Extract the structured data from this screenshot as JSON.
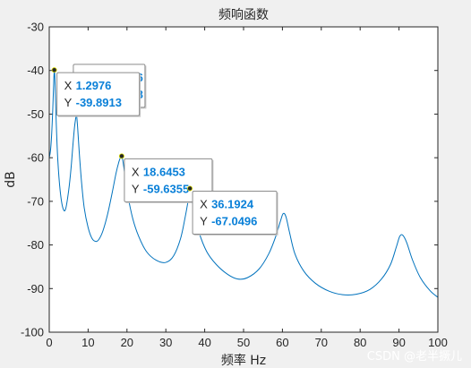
{
  "chart_data": {
    "type": "line",
    "title": "频响函数",
    "xlabel": "频率 Hz",
    "ylabel": "dB",
    "xlim": [
      0,
      100
    ],
    "ylim": [
      -100,
      -30
    ],
    "xticks": [
      0,
      10,
      20,
      30,
      40,
      50,
      60,
      70,
      80,
      90,
      100
    ],
    "yticks": [
      -30,
      -40,
      -50,
      -60,
      -70,
      -80,
      -90,
      -100
    ],
    "grid": false,
    "series": [
      {
        "line_color": "#0072bd",
        "x": [
          0,
          0.3,
          0.6,
          0.9,
          1.1,
          1.3,
          1.5,
          1.8,
          2.2,
          2.8,
          3.5,
          4.2,
          5.0,
          5.6,
          6.1,
          6.5,
          6.8,
          7.0,
          7.3,
          7.7,
          8.3,
          9.0,
          10.0,
          11.0,
          12.0,
          12.8,
          13.8,
          15.0,
          16.2,
          17.2,
          17.9,
          18.3,
          18.6,
          18.9,
          19.4,
          20.2,
          21.5,
          23.0,
          25.0,
          27.5,
          30.0,
          32.0,
          33.8,
          35.0,
          35.8,
          36.2,
          36.6,
          37.3,
          38.5,
          40.5,
          43.0,
          46.0,
          48.5,
          51.0,
          54.0,
          56.5,
          58.3,
          59.5,
          60.2,
          60.9,
          61.8,
          63.2,
          65.5,
          68.5,
          72.0,
          75.5,
          79.0,
          82.5,
          85.5,
          87.8,
          89.3,
          90.2,
          91.0,
          92.0,
          93.5,
          95.5,
          98.0,
          100.0
        ],
        "y": [
          -60.0,
          -58.5,
          -55.0,
          -49.0,
          -44.0,
          -39.9,
          -43.0,
          -52.0,
          -60.5,
          -67.5,
          -71.5,
          -71.8,
          -67.5,
          -62.5,
          -57.0,
          -53.0,
          -51.0,
          -50.0,
          -53.0,
          -58.5,
          -65.5,
          -71.5,
          -76.0,
          -78.5,
          -79.2,
          -78.7,
          -76.8,
          -73.0,
          -68.0,
          -63.5,
          -61.0,
          -60.0,
          -59.6,
          -60.5,
          -63.5,
          -68.5,
          -74.0,
          -78.0,
          -81.5,
          -83.5,
          -84.0,
          -82.5,
          -78.5,
          -73.5,
          -69.5,
          -67.0,
          -68.5,
          -72.5,
          -77.0,
          -81.5,
          -84.5,
          -86.8,
          -87.8,
          -87.5,
          -85.5,
          -82.0,
          -78.0,
          -74.5,
          -72.8,
          -73.5,
          -77.0,
          -82.0,
          -86.0,
          -88.8,
          -90.6,
          -91.4,
          -91.3,
          -90.2,
          -87.8,
          -84.5,
          -80.5,
          -78.0,
          -77.8,
          -79.5,
          -83.5,
          -87.5,
          -90.5,
          -92.0
        ]
      }
    ],
    "datatips": [
      {
        "key_x": "X",
        "key_y": "Y",
        "x_text": "1.2976",
        "y_text": "-39.8913",
        "x": 1.2976,
        "y": -39.8913
      },
      {
        "key_x": "X",
        "key_y": "Y",
        "x_text": "18.6453",
        "y_text": "-59.6355",
        "x": 18.6453,
        "y": -59.6355
      },
      {
        "key_x": "X",
        "key_y": "Y",
        "x_text": "36.1924",
        "y_text": "-67.0496",
        "x": 36.1924,
        "y": -67.0496
      }
    ],
    "hidden_datatip": {
      "x_text_partial": "76",
      "y_text_partial": "48",
      "x": 6.9,
      "y": -50.0
    }
  },
  "watermark": "CSDN @老半撅儿"
}
